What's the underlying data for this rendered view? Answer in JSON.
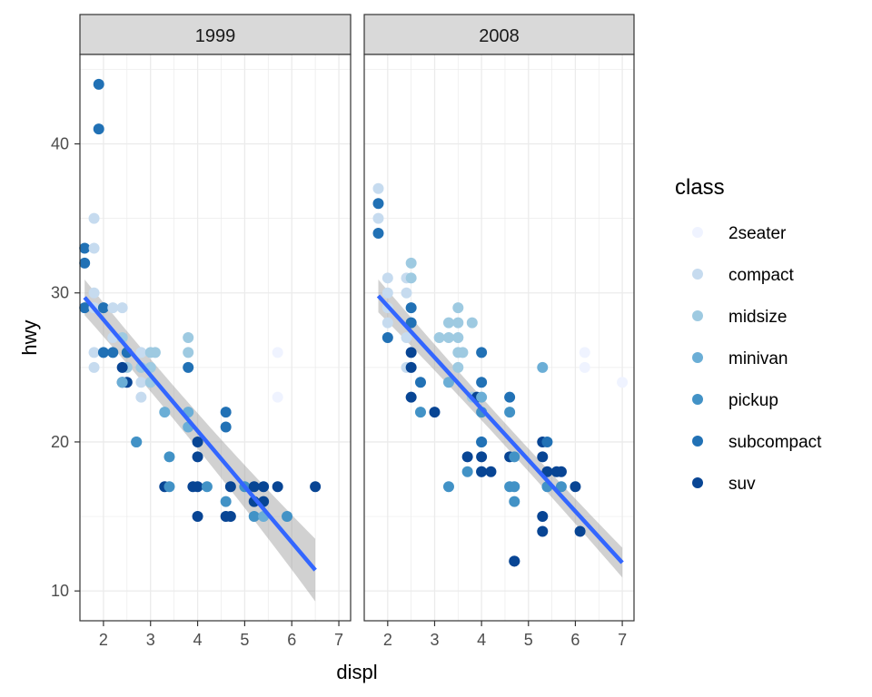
{
  "chart_data": {
    "type": "scatter",
    "facet_var": "year",
    "facets": [
      "1999",
      "2008"
    ],
    "xlabel": "displ",
    "ylabel": "hwy",
    "xlim": [
      1.5,
      7.25
    ],
    "ylim": [
      8,
      46
    ],
    "x_ticks": [
      2,
      3,
      4,
      5,
      6,
      7
    ],
    "y_ticks": [
      10,
      20,
      30,
      40
    ],
    "grid": true,
    "legend": {
      "title": "class",
      "position": "right",
      "items": [
        {
          "label": "2seater",
          "color": "#EFF3FF"
        },
        {
          "label": "compact",
          "color": "#C6DBEF"
        },
        {
          "label": "midsize",
          "color": "#9ECAE1"
        },
        {
          "label": "minivan",
          "color": "#6BAED6"
        },
        {
          "label": "pickup",
          "color": "#4292C6"
        },
        {
          "label": "subcompact",
          "color": "#2171B5"
        },
        {
          "label": "suv",
          "color": "#084594"
        }
      ]
    },
    "smooth": {
      "method": "lm",
      "line_color": "#3366FF",
      "band_color": "#999999",
      "panels": [
        {
          "facet": "1999",
          "x_range": [
            1.6,
            6.5
          ],
          "y_start": 29.7,
          "y_end": 11.4,
          "se_start": 1.2,
          "se_end": 2.1
        },
        {
          "facet": "2008",
          "x_range": [
            1.8,
            7.0
          ],
          "y_start": 29.8,
          "y_end": 11.9,
          "se_start": 1.1,
          "se_end": 1.0
        }
      ]
    },
    "points": [
      {
        "facet": "1999",
        "x": 1.9,
        "y": 44,
        "class": "subcompact"
      },
      {
        "facet": "1999",
        "x": 1.9,
        "y": 41,
        "class": "subcompact"
      },
      {
        "facet": "1999",
        "x": 1.8,
        "y": 35,
        "class": "compact"
      },
      {
        "facet": "1999",
        "x": 1.6,
        "y": 33,
        "class": "subcompact"
      },
      {
        "facet": "1999",
        "x": 1.8,
        "y": 33,
        "class": "compact"
      },
      {
        "facet": "1999",
        "x": 1.6,
        "y": 32,
        "class": "subcompact"
      },
      {
        "facet": "1999",
        "x": 1.8,
        "y": 30,
        "class": "compact"
      },
      {
        "facet": "1999",
        "x": 1.6,
        "y": 29,
        "class": "subcompact"
      },
      {
        "facet": "1999",
        "x": 1.8,
        "y": 29,
        "class": "compact"
      },
      {
        "facet": "1999",
        "x": 2.0,
        "y": 29,
        "class": "subcompact"
      },
      {
        "facet": "1999",
        "x": 2.2,
        "y": 29,
        "class": "compact"
      },
      {
        "facet": "1999",
        "x": 2.4,
        "y": 29,
        "class": "compact"
      },
      {
        "facet": "1999",
        "x": 2.2,
        "y": 27,
        "class": "compact"
      },
      {
        "facet": "1999",
        "x": 2.4,
        "y": 27,
        "class": "midsize"
      },
      {
        "facet": "1999",
        "x": 1.8,
        "y": 26,
        "class": "compact"
      },
      {
        "facet": "1999",
        "x": 2.0,
        "y": 26,
        "class": "subcompact"
      },
      {
        "facet": "1999",
        "x": 2.2,
        "y": 26,
        "class": "subcompact"
      },
      {
        "facet": "1999",
        "x": 2.5,
        "y": 26,
        "class": "subcompact"
      },
      {
        "facet": "1999",
        "x": 2.8,
        "y": 26,
        "class": "compact"
      },
      {
        "facet": "1999",
        "x": 3.0,
        "y": 26,
        "class": "midsize"
      },
      {
        "facet": "1999",
        "x": 3.1,
        "y": 26,
        "class": "midsize"
      },
      {
        "facet": "1999",
        "x": 3.8,
        "y": 26,
        "class": "midsize"
      },
      {
        "facet": "1999",
        "x": 2.5,
        "y": 25,
        "class": "midsize"
      },
      {
        "facet": "1999",
        "x": 1.8,
        "y": 25,
        "class": "compact"
      },
      {
        "facet": "1999",
        "x": 2.8,
        "y": 25,
        "class": "midsize"
      },
      {
        "facet": "1999",
        "x": 3.0,
        "y": 25,
        "class": "midsize"
      },
      {
        "facet": "1999",
        "x": 2.4,
        "y": 25,
        "class": "suv"
      },
      {
        "facet": "1999",
        "x": 3.8,
        "y": 25,
        "class": "subcompact"
      },
      {
        "facet": "1999",
        "x": 2.4,
        "y": 24,
        "class": "suv"
      },
      {
        "facet": "1999",
        "x": 2.5,
        "y": 24,
        "class": "suv"
      },
      {
        "facet": "1999",
        "x": 2.8,
        "y": 24,
        "class": "compact"
      },
      {
        "facet": "1999",
        "x": 3.0,
        "y": 24,
        "class": "midsize"
      },
      {
        "facet": "1999",
        "x": 2.4,
        "y": 24,
        "class": "minivan"
      },
      {
        "facet": "1999",
        "x": 2.8,
        "y": 23,
        "class": "compact"
      },
      {
        "facet": "1999",
        "x": 3.8,
        "y": 27,
        "class": "midsize"
      },
      {
        "facet": "1999",
        "x": 3.3,
        "y": 22,
        "class": "minivan"
      },
      {
        "facet": "1999",
        "x": 3.8,
        "y": 22,
        "class": "minivan"
      },
      {
        "facet": "1999",
        "x": 3.8,
        "y": 21,
        "class": "minivan"
      },
      {
        "facet": "1999",
        "x": 4.0,
        "y": 20,
        "class": "suv"
      },
      {
        "facet": "1999",
        "x": 2.7,
        "y": 20,
        "class": "pickup"
      },
      {
        "facet": "1999",
        "x": 2.7,
        "y": 20,
        "class": "pickup"
      },
      {
        "facet": "1999",
        "x": 3.4,
        "y": 19,
        "class": "pickup"
      },
      {
        "facet": "1999",
        "x": 4.0,
        "y": 19,
        "class": "suv"
      },
      {
        "facet": "1999",
        "x": 3.3,
        "y": 17,
        "class": "suv"
      },
      {
        "facet": "1999",
        "x": 3.4,
        "y": 17,
        "class": "pickup"
      },
      {
        "facet": "1999",
        "x": 3.9,
        "y": 17,
        "class": "suv"
      },
      {
        "facet": "1999",
        "x": 4.0,
        "y": 17,
        "class": "suv"
      },
      {
        "facet": "1999",
        "x": 4.2,
        "y": 17,
        "class": "pickup"
      },
      {
        "facet": "1999",
        "x": 4.7,
        "y": 17,
        "class": "suv"
      },
      {
        "facet": "1999",
        "x": 5.0,
        "y": 17,
        "class": "pickup"
      },
      {
        "facet": "1999",
        "x": 5.2,
        "y": 17,
        "class": "suv"
      },
      {
        "facet": "1999",
        "x": 5.4,
        "y": 17,
        "class": "suv"
      },
      {
        "facet": "1999",
        "x": 5.7,
        "y": 17,
        "class": "suv"
      },
      {
        "facet": "1999",
        "x": 6.5,
        "y": 17,
        "class": "suv"
      },
      {
        "facet": "1999",
        "x": 4.6,
        "y": 22,
        "class": "subcompact"
      },
      {
        "facet": "1999",
        "x": 4.6,
        "y": 21,
        "class": "subcompact"
      },
      {
        "facet": "1999",
        "x": 4.6,
        "y": 16,
        "class": "pickup"
      },
      {
        "facet": "1999",
        "x": 5.2,
        "y": 16,
        "class": "suv"
      },
      {
        "facet": "1999",
        "x": 5.4,
        "y": 16,
        "class": "suv"
      },
      {
        "facet": "1999",
        "x": 4.0,
        "y": 15,
        "class": "suv"
      },
      {
        "facet": "1999",
        "x": 4.6,
        "y": 15,
        "class": "suv"
      },
      {
        "facet": "1999",
        "x": 4.7,
        "y": 15,
        "class": "suv"
      },
      {
        "facet": "1999",
        "x": 5.2,
        "y": 15,
        "class": "pickup"
      },
      {
        "facet": "1999",
        "x": 5.4,
        "y": 15,
        "class": "minivan"
      },
      {
        "facet": "1999",
        "x": 5.9,
        "y": 15,
        "class": "pickup"
      },
      {
        "facet": "1999",
        "x": 5.7,
        "y": 26,
        "class": "2seater"
      },
      {
        "facet": "1999",
        "x": 5.7,
        "y": 23,
        "class": "2seater"
      },
      {
        "facet": "2008",
        "x": 1.8,
        "y": 37,
        "class": "compact"
      },
      {
        "facet": "2008",
        "x": 1.8,
        "y": 36,
        "class": "subcompact"
      },
      {
        "facet": "2008",
        "x": 1.8,
        "y": 35,
        "class": "compact"
      },
      {
        "facet": "2008",
        "x": 1.8,
        "y": 34,
        "class": "subcompact"
      },
      {
        "facet": "2008",
        "x": 2.0,
        "y": 31,
        "class": "compact"
      },
      {
        "facet": "2008",
        "x": 2.4,
        "y": 31,
        "class": "compact"
      },
      {
        "facet": "2008",
        "x": 2.5,
        "y": 31,
        "class": "midsize"
      },
      {
        "facet": "2008",
        "x": 2.5,
        "y": 32,
        "class": "midsize"
      },
      {
        "facet": "2008",
        "x": 2.0,
        "y": 30,
        "class": "compact"
      },
      {
        "facet": "2008",
        "x": 2.4,
        "y": 30,
        "class": "compact"
      },
      {
        "facet": "2008",
        "x": 2.0,
        "y": 29,
        "class": "compact"
      },
      {
        "facet": "2008",
        "x": 2.5,
        "y": 29,
        "class": "subcompact"
      },
      {
        "facet": "2008",
        "x": 2.0,
        "y": 28,
        "class": "compact"
      },
      {
        "facet": "2008",
        "x": 2.5,
        "y": 28,
        "class": "subcompact"
      },
      {
        "facet": "2008",
        "x": 3.5,
        "y": 29,
        "class": "midsize"
      },
      {
        "facet": "2008",
        "x": 3.3,
        "y": 28,
        "class": "midsize"
      },
      {
        "facet": "2008",
        "x": 3.5,
        "y": 28,
        "class": "midsize"
      },
      {
        "facet": "2008",
        "x": 3.8,
        "y": 28,
        "class": "midsize"
      },
      {
        "facet": "2008",
        "x": 2.0,
        "y": 27,
        "class": "subcompact"
      },
      {
        "facet": "2008",
        "x": 2.4,
        "y": 27,
        "class": "compact"
      },
      {
        "facet": "2008",
        "x": 3.1,
        "y": 27,
        "class": "midsize"
      },
      {
        "facet": "2008",
        "x": 3.3,
        "y": 27,
        "class": "midsize"
      },
      {
        "facet": "2008",
        "x": 3.5,
        "y": 27,
        "class": "midsize"
      },
      {
        "facet": "2008",
        "x": 2.5,
        "y": 26,
        "class": "suv"
      },
      {
        "facet": "2008",
        "x": 3.5,
        "y": 26,
        "class": "midsize"
      },
      {
        "facet": "2008",
        "x": 3.6,
        "y": 26,
        "class": "midsize"
      },
      {
        "facet": "2008",
        "x": 4.0,
        "y": 26,
        "class": "subcompact"
      },
      {
        "facet": "2008",
        "x": 2.4,
        "y": 25,
        "class": "compact"
      },
      {
        "facet": "2008",
        "x": 2.5,
        "y": 25,
        "class": "suv"
      },
      {
        "facet": "2008",
        "x": 3.5,
        "y": 25,
        "class": "midsize"
      },
      {
        "facet": "2008",
        "x": 5.3,
        "y": 25,
        "class": "minivan"
      },
      {
        "facet": "2008",
        "x": 6.2,
        "y": 26,
        "class": "2seater"
      },
      {
        "facet": "2008",
        "x": 6.2,
        "y": 25,
        "class": "2seater"
      },
      {
        "facet": "2008",
        "x": 7.0,
        "y": 24,
        "class": "2seater"
      },
      {
        "facet": "2008",
        "x": 2.7,
        "y": 24,
        "class": "subcompact"
      },
      {
        "facet": "2008",
        "x": 3.3,
        "y": 24,
        "class": "minivan"
      },
      {
        "facet": "2008",
        "x": 4.0,
        "y": 24,
        "class": "subcompact"
      },
      {
        "facet": "2008",
        "x": 2.5,
        "y": 23,
        "class": "suv"
      },
      {
        "facet": "2008",
        "x": 3.8,
        "y": 23,
        "class": "midsize"
      },
      {
        "facet": "2008",
        "x": 3.9,
        "y": 23,
        "class": "suv"
      },
      {
        "facet": "2008",
        "x": 4.0,
        "y": 23,
        "class": "minivan"
      },
      {
        "facet": "2008",
        "x": 4.6,
        "y": 23,
        "class": "subcompact"
      },
      {
        "facet": "2008",
        "x": 2.7,
        "y": 22,
        "class": "pickup"
      },
      {
        "facet": "2008",
        "x": 3.0,
        "y": 22,
        "class": "suv"
      },
      {
        "facet": "2008",
        "x": 4.0,
        "y": 22,
        "class": "pickup"
      },
      {
        "facet": "2008",
        "x": 4.6,
        "y": 22,
        "class": "pickup"
      },
      {
        "facet": "2008",
        "x": 4.0,
        "y": 20,
        "class": "pickup"
      },
      {
        "facet": "2008",
        "x": 4.0,
        "y": 20,
        "class": "subcompact"
      },
      {
        "facet": "2008",
        "x": 5.3,
        "y": 20,
        "class": "suv"
      },
      {
        "facet": "2008",
        "x": 5.4,
        "y": 20,
        "class": "subcompact"
      },
      {
        "facet": "2008",
        "x": 3.7,
        "y": 19,
        "class": "suv"
      },
      {
        "facet": "2008",
        "x": 4.0,
        "y": 19,
        "class": "suv"
      },
      {
        "facet": "2008",
        "x": 4.6,
        "y": 19,
        "class": "suv"
      },
      {
        "facet": "2008",
        "x": 4.7,
        "y": 19,
        "class": "pickup"
      },
      {
        "facet": "2008",
        "x": 5.3,
        "y": 19,
        "class": "suv"
      },
      {
        "facet": "2008",
        "x": 3.7,
        "y": 18,
        "class": "pickup"
      },
      {
        "facet": "2008",
        "x": 4.0,
        "y": 18,
        "class": "pickup"
      },
      {
        "facet": "2008",
        "x": 4.0,
        "y": 18,
        "class": "suv"
      },
      {
        "facet": "2008",
        "x": 4.2,
        "y": 18,
        "class": "suv"
      },
      {
        "facet": "2008",
        "x": 5.4,
        "y": 18,
        "class": "suv"
      },
      {
        "facet": "2008",
        "x": 5.6,
        "y": 18,
        "class": "suv"
      },
      {
        "facet": "2008",
        "x": 5.7,
        "y": 18,
        "class": "suv"
      },
      {
        "facet": "2008",
        "x": 3.3,
        "y": 17,
        "class": "pickup"
      },
      {
        "facet": "2008",
        "x": 4.6,
        "y": 17,
        "class": "pickup"
      },
      {
        "facet": "2008",
        "x": 4.7,
        "y": 17,
        "class": "pickup"
      },
      {
        "facet": "2008",
        "x": 5.4,
        "y": 17,
        "class": "pickup"
      },
      {
        "facet": "2008",
        "x": 5.7,
        "y": 17,
        "class": "pickup"
      },
      {
        "facet": "2008",
        "x": 6.0,
        "y": 17,
        "class": "suv"
      },
      {
        "facet": "2008",
        "x": 4.7,
        "y": 16,
        "class": "pickup"
      },
      {
        "facet": "2008",
        "x": 5.3,
        "y": 15,
        "class": "suv"
      },
      {
        "facet": "2008",
        "x": 5.3,
        "y": 14,
        "class": "suv"
      },
      {
        "facet": "2008",
        "x": 6.1,
        "y": 14,
        "class": "suv"
      },
      {
        "facet": "2008",
        "x": 4.7,
        "y": 12,
        "class": "suv"
      },
      {
        "facet": "2008",
        "x": 4.7,
        "y": 12,
        "class": "suv"
      }
    ]
  }
}
